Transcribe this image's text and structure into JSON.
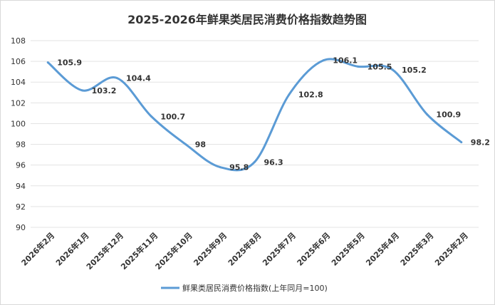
{
  "chart_data": {
    "type": "line",
    "title": "2025-2026年鲜果类居民消费价格指数趋势图",
    "categories": [
      "2026年2月",
      "2026年1月",
      "2025年12月",
      "2025年11月",
      "2025年10月",
      "2025年9月",
      "2025年8月",
      "2025年7月",
      "2025年6月",
      "2025年5月",
      "2025年4月",
      "2025年3月",
      "2025年2月"
    ],
    "series": [
      {
        "name": "鲜果类居民消费价格指数(上年同月=100)",
        "values": [
          105.9,
          103.2,
          104.4,
          100.7,
          98,
          95.8,
          96.3,
          102.8,
          106.1,
          105.5,
          105.2,
          100.9,
          98.2
        ],
        "color": "#5b9bd5"
      }
    ],
    "ylim": [
      90,
      108
    ],
    "yticks": [
      90,
      92,
      94,
      96,
      98,
      100,
      102,
      104,
      106,
      108
    ],
    "grid": true,
    "smooth": true,
    "legend": "bottom"
  }
}
